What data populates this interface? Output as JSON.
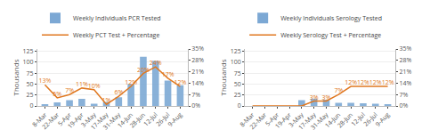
{
  "chart_data": [
    {
      "type": "bar",
      "categories": [
        "8-Mar",
        "22-Mar",
        "5-Apr",
        "19-Apr",
        "3-May",
        "17-May",
        "31-May",
        "14-Jun",
        "28-Jun",
        "12-Jul",
        "26-Jul",
        "9-Aug"
      ],
      "ylabel": "Thousands",
      "ylim": [
        0,
        130
      ],
      "yticks": [
        0,
        25,
        50,
        75,
        100,
        125
      ],
      "y2lim": [
        0,
        35
      ],
      "y2ticks": [
        {
          "value": 0,
          "label": "0%"
        },
        {
          "value": 7,
          "label": "7%"
        },
        {
          "value": 14,
          "label": "14%"
        },
        {
          "value": 21,
          "label": "21%"
        },
        {
          "value": 28,
          "label": "28%"
        },
        {
          "value": 35,
          "label": "35%"
        }
      ],
      "grid": true,
      "legend": "upper left",
      "series": [
        {
          "name": "Weekly Individuals PCR Tested",
          "type": "bar",
          "color": "#7ca8d4",
          "values": [
            3,
            8,
            13,
            16,
            5,
            9,
            20,
            50,
            112,
            103,
            58,
            47
          ]
        },
        {
          "name": "Weekly PCT Test + Percentage",
          "type": "line",
          "axis": "y2",
          "color": "#e07820",
          "values": [
            13,
            5,
            7,
            11,
            10,
            1,
            6,
            12,
            20,
            24,
            17,
            12
          ],
          "value_labels": [
            "13%",
            "5%",
            "7%",
            "11%",
            "10%",
            "1%",
            "6%",
            "12%",
            "20%",
            "24%",
            "17%",
            "12%"
          ],
          "data_labels": true
        }
      ]
    },
    {
      "type": "bar",
      "categories": [
        "8-Mar",
        "22-Mar",
        "5-Apr",
        "19-Apr",
        "3-May",
        "17-May",
        "31-May",
        "14-Jun",
        "28-Jun",
        "12-Jul",
        "26-Jul",
        "9-Aug"
      ],
      "ylabel": "Thousands",
      "ylim": [
        0,
        130
      ],
      "yticks": [
        0,
        25,
        50,
        75,
        100,
        125
      ],
      "y2lim": [
        0,
        35
      ],
      "y2ticks": [
        {
          "value": 0,
          "label": "0%"
        },
        {
          "value": 7,
          "label": "7%"
        },
        {
          "value": 14,
          "label": "14%"
        },
        {
          "value": 21,
          "label": "21%"
        },
        {
          "value": 28,
          "label": "28%"
        },
        {
          "value": 35,
          "label": "35%"
        }
      ],
      "grid": true,
      "legend": "upper left",
      "series": [
        {
          "name": "Weekly Individuals Serology Tested",
          "type": "bar",
          "color": "#7ca8d4",
          "values": [
            0,
            0,
            0,
            0,
            13,
            17,
            14,
            7,
            7,
            6,
            5,
            4
          ]
        },
        {
          "name": "Weekly Serology Test + Percentage",
          "type": "line",
          "axis": "y2",
          "color": "#e07820",
          "values": [
            0,
            0,
            0,
            0,
            0,
            3,
            3,
            7,
            12,
            12,
            12,
            12
          ],
          "value_labels": [
            null,
            null,
            null,
            null,
            null,
            "3%",
            "3%",
            "7%",
            "12%",
            "12%",
            "12%",
            "12%"
          ],
          "data_labels": true
        }
      ]
    }
  ]
}
